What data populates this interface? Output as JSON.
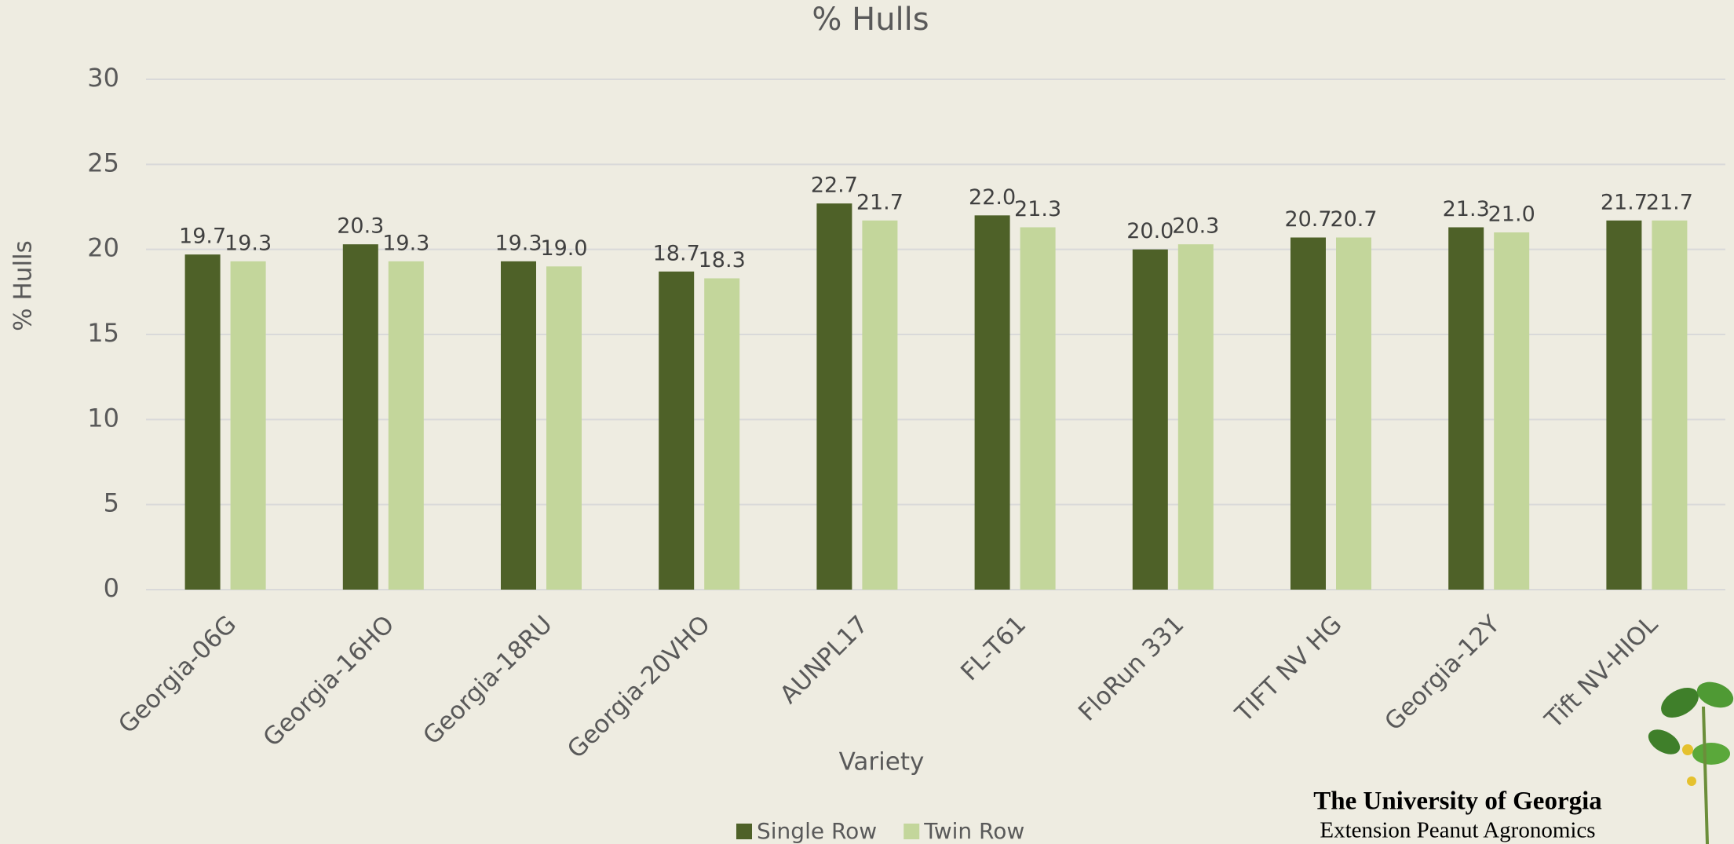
{
  "chart_data": {
    "type": "bar",
    "title": "% Hulls",
    "x_label": "Variety",
    "y_label": "% Hulls",
    "categories": [
      "Georgia-06G",
      "Georgia-16HO",
      "Georgia-18RU",
      "Georgia-20VHO",
      "AUNPL17",
      "FL-T61",
      "FloRun 331",
      "TIFT NV HG",
      "Georgia-12Y",
      "Tift NV-HIOL"
    ],
    "series": [
      {
        "name": "Single Row",
        "color": "#4e6128",
        "values": [
          19.7,
          20.3,
          19.3,
          18.7,
          22.7,
          22.0,
          20.0,
          20.7,
          21.3,
          21.7
        ],
        "value_labels": [
          "19.7",
          "20.3",
          "19.3",
          "18.7",
          "22.7",
          "22.0",
          "20.0",
          "20.7",
          "21.3",
          "21.7"
        ]
      },
      {
        "name": "Twin Row",
        "color": "#c3d69b",
        "values": [
          19.3,
          19.3,
          19.0,
          18.3,
          21.7,
          21.3,
          20.3,
          20.7,
          21.0,
          21.7
        ],
        "value_labels": [
          "19.3",
          "19.3",
          "19.0",
          "18.3",
          "21.7",
          "21.3",
          "20.3",
          "20.7",
          "21.0",
          "21.7"
        ]
      }
    ],
    "ylim": [
      0,
      30
    ],
    "yticks": [
      0,
      5,
      10,
      15,
      20,
      25,
      30
    ],
    "grid": true,
    "legend": "bottom"
  },
  "footer": {
    "title": "The University of Georgia",
    "subtitle": "Extension Peanut Agronomics"
  }
}
